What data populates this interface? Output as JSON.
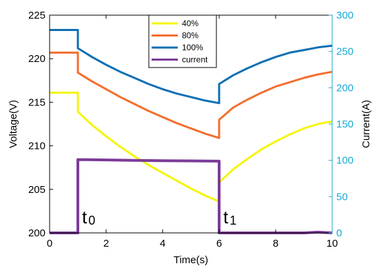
{
  "chart_data": {
    "type": "line",
    "xlabel": "Time(s)",
    "ylabel_left": "Voltage(V)",
    "ylabel_right": "Current(A)",
    "xlim": [
      0,
      10
    ],
    "ylim_left": [
      200,
      225
    ],
    "ylim_right": [
      0,
      300
    ],
    "x_ticks": [
      "0",
      "2",
      "4",
      "6",
      "8",
      "10"
    ],
    "y_left_ticks": [
      "200",
      "205",
      "210",
      "215",
      "220",
      "225"
    ],
    "y_right_ticks": [
      "0",
      "50",
      "100",
      "150",
      "200",
      "250",
      "300"
    ],
    "grid": false,
    "legend_position": "top-center",
    "colors": {
      "left_axis": "#000000",
      "right_axis": "#17a9d8",
      "box": "#000000"
    },
    "series": [
      {
        "name": "40%",
        "axis": "left",
        "color": "#f5f50a",
        "x": [
          0,
          1,
          1,
          1.5,
          2,
          2.5,
          3,
          3.5,
          4,
          4.5,
          5,
          5.5,
          6,
          6,
          6.5,
          7,
          7.5,
          8,
          8.5,
          9,
          9.5,
          10
        ],
        "y": [
          216.1,
          216.1,
          213.9,
          212.4,
          211.1,
          209.9,
          208.8,
          207.8,
          206.9,
          206.0,
          205.1,
          204.3,
          203.6,
          205.8,
          207.3,
          208.5,
          209.6,
          210.5,
          211.3,
          212.0,
          212.5,
          212.8
        ]
      },
      {
        "name": "80%",
        "axis": "left",
        "color": "#f36f2e",
        "x": [
          0,
          1,
          1,
          1.5,
          2,
          2.5,
          3,
          3.5,
          4,
          4.5,
          5,
          5.5,
          6,
          6,
          6.5,
          7,
          7.5,
          8,
          8.5,
          9,
          9.5,
          10
        ],
        "y": [
          220.7,
          220.7,
          218.4,
          217.4,
          216.5,
          215.6,
          214.8,
          214.0,
          213.3,
          212.6,
          212.0,
          211.4,
          210.9,
          213.0,
          214.4,
          215.3,
          216.1,
          216.8,
          217.3,
          217.8,
          218.2,
          218.5
        ]
      },
      {
        "name": "100%",
        "axis": "left",
        "color": "#0e6fb2",
        "x": [
          0,
          1,
          1,
          1.5,
          2,
          2.5,
          3,
          3.5,
          4,
          4.5,
          5,
          5.5,
          6,
          6,
          6.5,
          7,
          7.5,
          8,
          8.5,
          9,
          9.5,
          10
        ],
        "y": [
          223.3,
          223.3,
          221.2,
          220.2,
          219.3,
          218.5,
          217.8,
          217.1,
          216.5,
          216.0,
          215.6,
          215.2,
          214.9,
          217.1,
          218.1,
          218.9,
          219.6,
          220.2,
          220.7,
          221.0,
          221.3,
          221.5
        ]
      },
      {
        "name": "current",
        "axis": "right",
        "color": "#7b3b98",
        "x": [
          0,
          1,
          1,
          2,
          3,
          4,
          5,
          6,
          6,
          7,
          8,
          9,
          9.5,
          10
        ],
        "y": [
          0,
          0,
          101,
          100.5,
          100,
          99.5,
          99.2,
          98.8,
          0,
          0,
          0,
          0,
          1,
          0
        ]
      }
    ],
    "annotations": [
      {
        "main": "t",
        "sub": "0",
        "x": 1
      },
      {
        "main": "t",
        "sub": "1",
        "x": 6
      }
    ]
  }
}
